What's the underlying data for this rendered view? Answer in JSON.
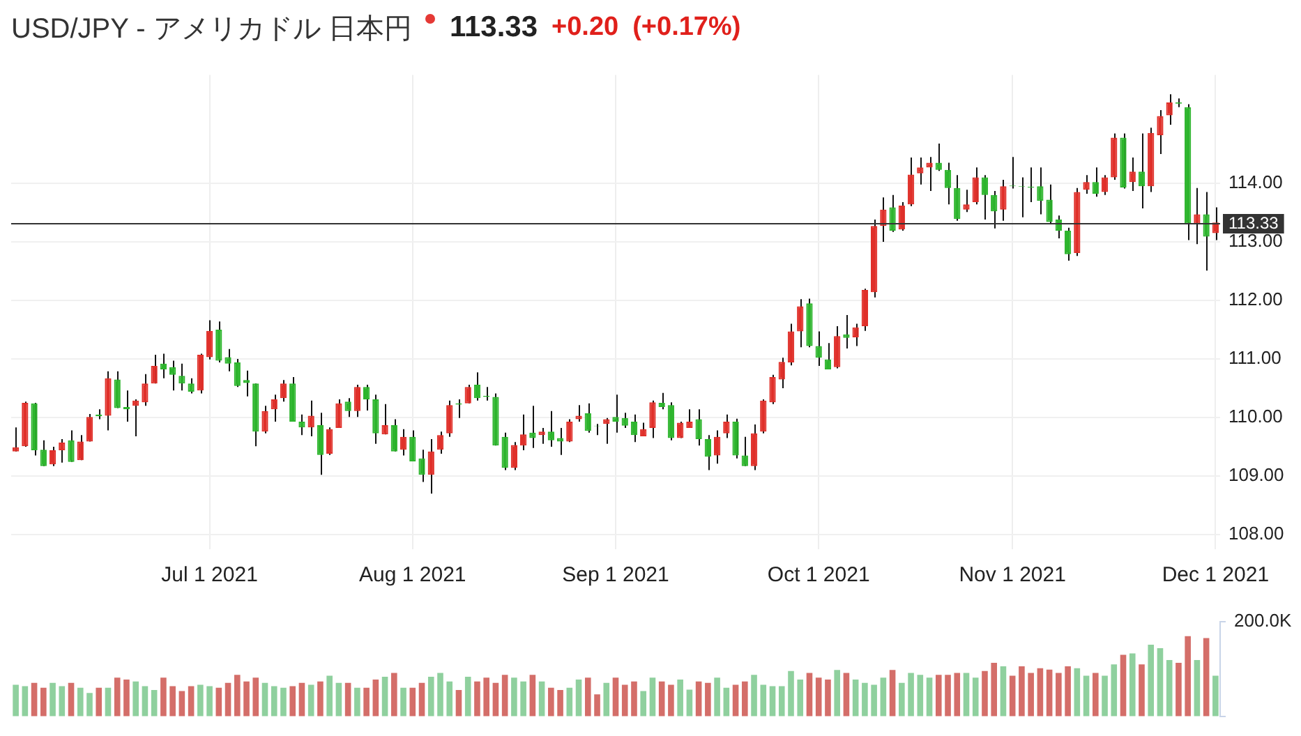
{
  "chart_data": [
    {
      "type": "candlestick",
      "title": "USD/JPY - アメリカドル 日本円",
      "annotations": [
        "113.33",
        "+0.20",
        "(+0.17%)"
      ],
      "categories": [
        null,
        null,
        null,
        null,
        null,
        null,
        null,
        null,
        null,
        null,
        null,
        null,
        null,
        null,
        null,
        null,
        null,
        null,
        null,
        null,
        null,
        "Jul 1 2021",
        null,
        null,
        null,
        null,
        null,
        null,
        null,
        null,
        null,
        null,
        null,
        null,
        null,
        null,
        null,
        null,
        null,
        null,
        null,
        null,
        null,
        "Aug 1 2021",
        null,
        null,
        null,
        null,
        null,
        null,
        null,
        null,
        null,
        null,
        null,
        null,
        null,
        null,
        null,
        null,
        null,
        null,
        null,
        null,
        null,
        "Sep 1 2021",
        null,
        null,
        null,
        null,
        null,
        null,
        null,
        null,
        null,
        null,
        null,
        null,
        null,
        null,
        null,
        null,
        null,
        null,
        null,
        null,
        null,
        "Oct 1 2021",
        null,
        null,
        null,
        null,
        null,
        null,
        null,
        null,
        null,
        null,
        null,
        null,
        null,
        null,
        null,
        null,
        null,
        null,
        null,
        null,
        "Nov 1 2021",
        null,
        null,
        null,
        null,
        null,
        null,
        null,
        null,
        null,
        null,
        null,
        null,
        null,
        null,
        null,
        null,
        null,
        null,
        null,
        null,
        null,
        "Dec 1 2021"
      ],
      "ohlc": [
        [
          109.42,
          109.83,
          109.42,
          109.49
        ],
        [
          109.51,
          110.27,
          109.5,
          110.25
        ],
        [
          110.24,
          110.25,
          109.35,
          109.44
        ],
        [
          109.45,
          109.61,
          109.17,
          109.17
        ],
        [
          109.2,
          109.5,
          109.17,
          109.44
        ],
        [
          109.44,
          109.63,
          109.23,
          109.57
        ],
        [
          109.61,
          109.78,
          109.24,
          109.24
        ],
        [
          109.27,
          109.7,
          109.27,
          109.59
        ],
        [
          109.59,
          110.06,
          109.59,
          110.01
        ],
        [
          110.05,
          110.14,
          109.97,
          110.02
        ],
        [
          110.03,
          110.79,
          109.78,
          110.67
        ],
        [
          110.65,
          110.79,
          110.16,
          110.16
        ],
        [
          110.18,
          110.46,
          109.93,
          110.14
        ],
        [
          110.2,
          110.31,
          109.68,
          110.29
        ],
        [
          110.26,
          110.74,
          110.2,
          110.58
        ],
        [
          110.58,
          111.07,
          110.58,
          110.88
        ],
        [
          110.92,
          111.09,
          110.67,
          110.82
        ],
        [
          110.86,
          110.97,
          110.46,
          110.73
        ],
        [
          110.71,
          110.92,
          110.46,
          110.58
        ],
        [
          110.58,
          110.67,
          110.41,
          110.44
        ],
        [
          110.46,
          111.09,
          110.41,
          111.07
        ],
        [
          111.03,
          111.66,
          110.99,
          111.48
        ],
        [
          111.5,
          111.64,
          110.94,
          110.97
        ],
        [
          111.03,
          111.17,
          110.79,
          110.92
        ],
        [
          110.94,
          111.0,
          110.52,
          110.54
        ],
        [
          110.64,
          110.8,
          110.36,
          110.59
        ],
        [
          110.58,
          110.58,
          109.51,
          109.76
        ],
        [
          109.76,
          110.2,
          109.73,
          110.11
        ],
        [
          110.14,
          110.39,
          109.93,
          110.31
        ],
        [
          110.33,
          110.64,
          110.27,
          110.58
        ],
        [
          110.58,
          110.69,
          109.93,
          109.93
        ],
        [
          109.93,
          110.05,
          109.7,
          109.83
        ],
        [
          109.83,
          110.29,
          109.68,
          110.03
        ],
        [
          109.87,
          110.08,
          109.02,
          109.36
        ],
        [
          109.38,
          109.83,
          109.36,
          109.8
        ],
        [
          109.82,
          110.31,
          109.82,
          110.24
        ],
        [
          110.27,
          110.33,
          110.01,
          110.11
        ],
        [
          110.11,
          110.56,
          110.01,
          110.52
        ],
        [
          110.52,
          110.56,
          110.12,
          110.31
        ],
        [
          110.31,
          110.39,
          109.55,
          109.73
        ],
        [
          109.71,
          110.23,
          109.71,
          109.87
        ],
        [
          109.87,
          109.97,
          109.42,
          109.42
        ],
        [
          109.45,
          109.8,
          109.35,
          109.67
        ],
        [
          109.67,
          109.78,
          109.25,
          109.25
        ],
        [
          109.3,
          109.45,
          108.9,
          109.02
        ],
        [
          109.02,
          109.63,
          108.7,
          109.42
        ],
        [
          109.45,
          109.76,
          109.38,
          109.7
        ],
        [
          109.73,
          110.29,
          109.67,
          110.21
        ],
        [
          110.24,
          110.31,
          109.99,
          110.22
        ],
        [
          110.24,
          110.56,
          110.24,
          110.52
        ],
        [
          110.56,
          110.77,
          110.29,
          110.33
        ],
        [
          110.37,
          110.52,
          110.29,
          110.35
        ],
        [
          110.35,
          110.41,
          109.52,
          109.52
        ],
        [
          109.67,
          109.74,
          109.1,
          109.14
        ],
        [
          109.14,
          109.58,
          109.1,
          109.53
        ],
        [
          109.52,
          110.05,
          109.44,
          109.71
        ],
        [
          109.74,
          110.2,
          109.48,
          109.65
        ],
        [
          109.7,
          109.82,
          109.55,
          109.76
        ],
        [
          109.76,
          110.11,
          109.5,
          109.61
        ],
        [
          109.65,
          109.82,
          109.36,
          109.59
        ],
        [
          109.59,
          109.97,
          109.58,
          109.93
        ],
        [
          109.97,
          110.21,
          109.93,
          110.03
        ],
        [
          110.07,
          110.24,
          109.74,
          109.77
        ],
        [
          109.86,
          109.89,
          109.7,
          109.85
        ],
        [
          109.89,
          109.99,
          109.55,
          109.97
        ],
        [
          110.01,
          110.39,
          109.74,
          109.93
        ],
        [
          109.99,
          110.08,
          109.82,
          109.86
        ],
        [
          109.93,
          110.05,
          109.58,
          109.7
        ],
        [
          109.68,
          109.91,
          109.68,
          109.8
        ],
        [
          109.82,
          110.29,
          109.65,
          110.26
        ],
        [
          110.25,
          110.42,
          110.14,
          110.18
        ],
        [
          110.21,
          110.26,
          109.61,
          109.65
        ],
        [
          109.65,
          109.93,
          109.65,
          109.91
        ],
        [
          109.82,
          110.14,
          109.82,
          109.93
        ],
        [
          109.97,
          110.14,
          109.52,
          109.63
        ],
        [
          109.63,
          109.7,
          109.1,
          109.33
        ],
        [
          109.35,
          109.78,
          109.21,
          109.67
        ],
        [
          109.73,
          110.05,
          109.65,
          109.93
        ],
        [
          109.93,
          109.98,
          109.3,
          109.35
        ],
        [
          109.35,
          109.67,
          109.17,
          109.17
        ],
        [
          109.17,
          109.88,
          109.1,
          109.73
        ],
        [
          109.76,
          110.31,
          109.73,
          110.29
        ],
        [
          110.26,
          110.73,
          110.23,
          110.69
        ],
        [
          110.65,
          111.02,
          110.5,
          110.95
        ],
        [
          110.94,
          111.6,
          110.89,
          111.47
        ],
        [
          111.47,
          112.02,
          111.2,
          111.9
        ],
        [
          111.95,
          112.03,
          111.2,
          111.22
        ],
        [
          111.22,
          111.47,
          110.88,
          111.02
        ],
        [
          110.99,
          111.27,
          110.82,
          110.82
        ],
        [
          110.86,
          111.56,
          110.84,
          111.39
        ],
        [
          111.42,
          111.75,
          111.18,
          111.36
        ],
        [
          111.37,
          111.6,
          111.22,
          111.54
        ],
        [
          111.56,
          112.2,
          111.48,
          112.18
        ],
        [
          112.14,
          113.38,
          112.05,
          113.27
        ],
        [
          113.27,
          113.76,
          113.0,
          113.55
        ],
        [
          113.59,
          113.8,
          113.17,
          113.19
        ],
        [
          113.21,
          113.68,
          113.19,
          113.62
        ],
        [
          113.64,
          114.44,
          113.61,
          114.15
        ],
        [
          114.17,
          114.44,
          113.98,
          114.27
        ],
        [
          114.27,
          114.45,
          113.87,
          114.35
        ],
        [
          114.35,
          114.68,
          114.21,
          114.23
        ],
        [
          114.23,
          114.35,
          113.64,
          113.92
        ],
        [
          113.92,
          114.14,
          113.36,
          113.39
        ],
        [
          113.55,
          113.89,
          113.51,
          113.64
        ],
        [
          113.68,
          114.27,
          113.64,
          114.1
        ],
        [
          114.1,
          114.14,
          113.38,
          113.8
        ],
        [
          113.8,
          113.87,
          113.23,
          113.52
        ],
        [
          113.55,
          114.06,
          113.36,
          113.95
        ],
        [
          113.96,
          114.45,
          113.91,
          113.95
        ],
        [
          113.95,
          114.1,
          113.42,
          113.94
        ],
        [
          113.94,
          114.27,
          113.68,
          113.93
        ],
        [
          113.95,
          114.27,
          113.47,
          113.7
        ],
        [
          113.72,
          113.98,
          113.3,
          113.34
        ],
        [
          113.38,
          113.45,
          113.06,
          113.19
        ],
        [
          113.19,
          113.24,
          112.68,
          112.79
        ],
        [
          112.81,
          113.92,
          112.76,
          113.85
        ],
        [
          113.89,
          114.14,
          113.82,
          114.02
        ],
        [
          114.02,
          114.27,
          113.77,
          113.82
        ],
        [
          113.85,
          114.14,
          113.8,
          114.1
        ],
        [
          114.1,
          114.85,
          114.06,
          114.78
        ],
        [
          114.78,
          114.85,
          113.91,
          113.93
        ],
        [
          114.02,
          114.44,
          113.87,
          114.2
        ],
        [
          114.2,
          114.85,
          113.57,
          113.95
        ],
        [
          113.95,
          114.95,
          113.85,
          114.86
        ],
        [
          114.82,
          115.25,
          114.5,
          115.15
        ],
        [
          115.16,
          115.52,
          115.0,
          115.38
        ],
        [
          115.38,
          115.45,
          115.3,
          115.36
        ],
        [
          115.3,
          115.35,
          113.03,
          113.3
        ],
        [
          113.3,
          113.92,
          112.96,
          113.47
        ],
        [
          113.47,
          113.85,
          112.51,
          113.09
        ],
        [
          113.15,
          113.59,
          113.03,
          113.33
        ]
      ],
      "colors": [
        "#e0302a",
        "#e0302a",
        "#2db52d",
        "#2db52d",
        "#e0302a",
        "#e0302a",
        "#2db52d",
        "#e0302a",
        "#e0302a",
        "#2db52d",
        "#e0302a",
        "#2db52d",
        "#2db52d",
        "#e0302a",
        "#e0302a",
        "#e0302a",
        "#2db52d",
        "#2db52d",
        "#2db52d",
        "#2db52d",
        "#e0302a",
        "#e0302a",
        "#2db52d",
        "#2db52d",
        "#2db52d",
        "#2db52d",
        "#2db52d",
        "#e0302a",
        "#e0302a",
        "#e0302a",
        "#2db52d",
        "#2db52d",
        "#e0302a",
        "#2db52d",
        "#e0302a",
        "#e0302a",
        "#2db52d",
        "#e0302a",
        "#2db52d",
        "#2db52d",
        "#e0302a",
        "#2db52d",
        "#e0302a",
        "#2db52d",
        "#2db52d",
        "#e0302a",
        "#e0302a",
        "#e0302a",
        "#2db52d",
        "#e0302a",
        "#2db52d",
        "#2db52d",
        "#2db52d",
        "#2db52d",
        "#e0302a",
        "#e0302a",
        "#2db52d",
        "#e0302a",
        "#2db52d",
        "#2db52d",
        "#e0302a",
        "#e0302a",
        "#2db52d",
        "#2db52d",
        "#e0302a",
        "#2db52d",
        "#2db52d",
        "#2db52d",
        "#e0302a",
        "#e0302a",
        "#2db52d",
        "#2db52d",
        "#e0302a",
        "#e0302a",
        "#2db52d",
        "#2db52d",
        "#e0302a",
        "#e0302a",
        "#2db52d",
        "#2db52d",
        "#e0302a",
        "#e0302a",
        "#e0302a",
        "#e0302a",
        "#e0302a",
        "#e0302a",
        "#2db52d",
        "#2db52d",
        "#2db52d",
        "#e0302a",
        "#2db52d",
        "#e0302a",
        "#e0302a",
        "#e0302a",
        "#e0302a",
        "#2db52d",
        "#e0302a",
        "#e0302a",
        "#e0302a",
        "#e0302a",
        "#2db52d",
        "#2db52d",
        "#2db52d",
        "#e0302a",
        "#e0302a",
        "#2db52d",
        "#2db52d",
        "#e0302a",
        "#2db52d",
        "#2db52d",
        "#2db52d",
        "#2db52d",
        "#2db52d",
        "#2db52d",
        "#2db52d",
        "#e0302a",
        "#e0302a",
        "#2db52d",
        "#e0302a",
        "#e0302a",
        "#2db52d",
        "#e0302a",
        "#2db52d",
        "#e0302a",
        "#e0302a",
        "#e0302a",
        "#2db52d",
        "#2db52d",
        "#e0302a",
        "#2db52d",
        "#e0302a"
      ],
      "ylim": [
        107.75,
        115.85
      ],
      "yticks": [
        {
          "value": 108,
          "label": "108.00"
        },
        {
          "value": 109,
          "label": "109.00"
        },
        {
          "value": 110,
          "label": "110.00"
        },
        {
          "value": 111,
          "label": "111.00"
        },
        {
          "value": 112,
          "label": "112.00"
        },
        {
          "value": 113,
          "label": "113.00"
        },
        {
          "value": 114,
          "label": "114.00"
        }
      ],
      "grid": true,
      "ref_lines": [
        {
          "axis": "y",
          "value": 113.33,
          "label": "113.33",
          "color": "#333333"
        }
      ]
    },
    {
      "type": "bar",
      "categories": [
        null,
        null,
        null,
        null,
        null,
        null,
        null,
        null,
        null,
        null,
        null,
        null,
        null,
        null,
        null,
        null,
        null,
        null,
        null,
        null,
        null,
        null,
        null,
        null,
        null,
        null,
        null,
        null,
        null,
        null,
        null,
        null,
        null,
        null,
        null,
        null,
        null,
        null,
        null,
        null,
        null,
        null,
        null,
        null,
        null,
        null,
        null,
        null,
        null,
        null,
        null,
        null,
        null,
        null,
        null,
        null,
        null,
        null,
        null,
        null,
        null,
        null,
        null,
        null,
        null,
        null,
        null,
        null,
        null,
        null,
        null,
        null,
        null,
        null,
        null,
        null,
        null,
        null,
        null,
        null,
        null,
        null,
        null,
        null,
        null,
        null,
        null,
        null,
        null,
        null,
        null,
        null,
        null,
        null,
        null,
        null,
        null,
        null,
        null,
        null,
        null,
        null,
        null,
        null,
        null,
        null,
        null,
        null,
        null,
        null,
        null,
        null,
        null,
        null,
        null,
        null,
        null,
        null,
        null,
        null,
        null,
        null,
        null,
        null,
        null,
        null,
        null,
        null,
        null,
        null,
        null
      ],
      "values": [
        67000,
        64000,
        71000,
        61000,
        71000,
        64000,
        71000,
        61000,
        50000,
        61000,
        61000,
        82000,
        78000,
        74000,
        64000,
        56000,
        82000,
        64000,
        54000,
        64000,
        67000,
        64000,
        61000,
        71000,
        88000,
        74000,
        82000,
        71000,
        64000,
        61000,
        64000,
        71000,
        67000,
        74000,
        86000,
        71000,
        71000,
        61000,
        61000,
        78000,
        84000,
        92000,
        61000,
        61000,
        71000,
        84000,
        92000,
        74000,
        56000,
        84000,
        74000,
        82000,
        71000,
        88000,
        82000,
        74000,
        88000,
        74000,
        61000,
        56000,
        61000,
        78000,
        82000,
        47000,
        71000,
        82000,
        67000,
        74000,
        54000,
        82000,
        74000,
        67000,
        78000,
        57000,
        74000,
        71000,
        82000,
        61000,
        67000,
        74000,
        88000,
        67000,
        64000,
        64000,
        96000,
        78000,
        92000,
        82000,
        78000,
        98000,
        92000,
        78000,
        71000,
        67000,
        82000,
        98000,
        71000,
        92000,
        88000,
        82000,
        88000,
        88000,
        92000,
        92000,
        82000,
        96000,
        113000,
        106000,
        86000,
        106000,
        92000,
        102000,
        99000,
        92000,
        106000,
        102000,
        86000,
        92000,
        86000,
        110000,
        130000,
        133000,
        110000,
        151000,
        144000,
        119000,
        113000,
        169000,
        119000,
        165000,
        86000
      ],
      "colors": [
        "#8fd09e",
        "#8fd09e",
        "#d46e69",
        "#d46e69",
        "#8fd09e",
        "#8fd09e",
        "#d46e69",
        "#8fd09e",
        "#8fd09e",
        "#d46e69",
        "#8fd09e",
        "#d46e69",
        "#d46e69",
        "#8fd09e",
        "#8fd09e",
        "#8fd09e",
        "#d46e69",
        "#d46e69",
        "#d46e69",
        "#d46e69",
        "#8fd09e",
        "#8fd09e",
        "#d46e69",
        "#d46e69",
        "#d46e69",
        "#d46e69",
        "#d46e69",
        "#8fd09e",
        "#8fd09e",
        "#8fd09e",
        "#d46e69",
        "#d46e69",
        "#8fd09e",
        "#d46e69",
        "#8fd09e",
        "#8fd09e",
        "#d46e69",
        "#8fd09e",
        "#d46e69",
        "#d46e69",
        "#8fd09e",
        "#d46e69",
        "#8fd09e",
        "#d46e69",
        "#d46e69",
        "#8fd09e",
        "#8fd09e",
        "#8fd09e",
        "#d46e69",
        "#8fd09e",
        "#d46e69",
        "#d46e69",
        "#d46e69",
        "#d46e69",
        "#8fd09e",
        "#8fd09e",
        "#d46e69",
        "#8fd09e",
        "#d46e69",
        "#d46e69",
        "#8fd09e",
        "#8fd09e",
        "#d46e69",
        "#d46e69",
        "#8fd09e",
        "#d46e69",
        "#d46e69",
        "#d46e69",
        "#8fd09e",
        "#8fd09e",
        "#d46e69",
        "#d46e69",
        "#8fd09e",
        "#8fd09e",
        "#d46e69",
        "#d46e69",
        "#8fd09e",
        "#8fd09e",
        "#d46e69",
        "#d46e69",
        "#8fd09e",
        "#8fd09e",
        "#8fd09e",
        "#8fd09e",
        "#8fd09e",
        "#8fd09e",
        "#d46e69",
        "#d46e69",
        "#d46e69",
        "#8fd09e",
        "#d46e69",
        "#8fd09e",
        "#8fd09e",
        "#8fd09e",
        "#8fd09e",
        "#d46e69",
        "#8fd09e",
        "#8fd09e",
        "#8fd09e",
        "#8fd09e",
        "#d46e69",
        "#d46e69",
        "#d46e69",
        "#8fd09e",
        "#8fd09e",
        "#d46e69",
        "#d46e69",
        "#8fd09e",
        "#d46e69",
        "#d46e69",
        "#d46e69",
        "#d46e69",
        "#d46e69",
        "#d46e69",
        "#d46e69",
        "#8fd09e",
        "#8fd09e",
        "#d46e69",
        "#8fd09e",
        "#8fd09e",
        "#d46e69",
        "#8fd09e",
        "#d46e69",
        "#8fd09e",
        "#8fd09e",
        "#8fd09e",
        "#d46e69",
        "#d46e69",
        "#8fd09e",
        "#d46e69",
        "#8fd09e"
      ],
      "ylim": [
        0,
        200000
      ],
      "yticks": [
        0,
        {
          "value": 200000,
          "label": "200.0K"
        }
      ],
      "tick_labels": "y"
    }
  ]
}
